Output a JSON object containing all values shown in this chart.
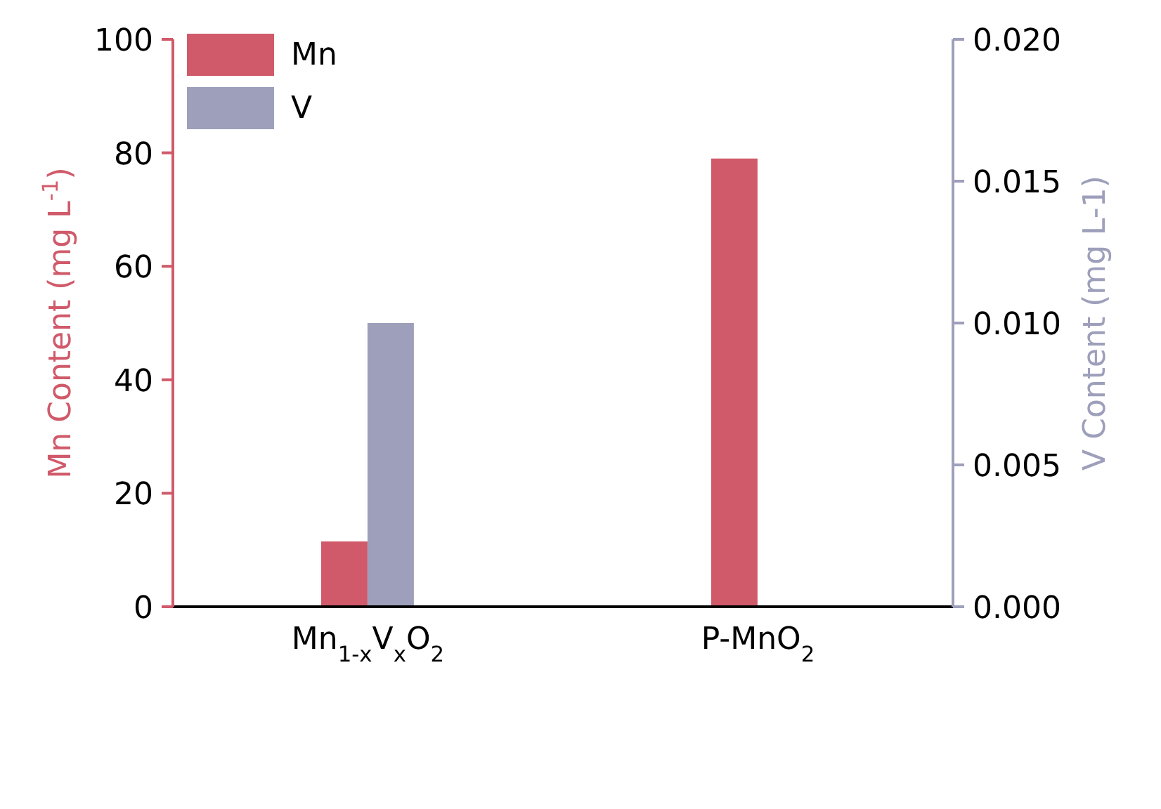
{
  "chart_data": {
    "type": "bar",
    "categories": [
      "Mn$_{1-x}$V$_{x}$O$_{2}$",
      "P-MnO$_{2}$"
    ],
    "series": [
      {
        "name": "Mn",
        "color": "#d05a6a",
        "values": [
          11.5,
          79
        ]
      },
      {
        "name": "V",
        "color": "#9d9fbb",
        "values": [
          0.01,
          null
        ],
        "axis": "y2"
      }
    ],
    "ylabel": "Mn Content (mg L$^{-1}$)",
    "y2label": "V Content (mg L-1)",
    "ylim": [
      0,
      100
    ],
    "yticks": [
      0,
      20,
      40,
      60,
      80,
      100
    ],
    "y2lim": [
      0,
      0.02
    ],
    "y2ticks": [
      {
        "value": 0,
        "label": "0.000"
      },
      {
        "value": 0.005,
        "label": "0.005"
      },
      {
        "value": 0.01,
        "label": "0.010"
      },
      {
        "value": 0.015,
        "label": "0.015"
      },
      {
        "value": 0.02,
        "label": "0.020"
      }
    ],
    "legend": "top left",
    "grid": false
  }
}
